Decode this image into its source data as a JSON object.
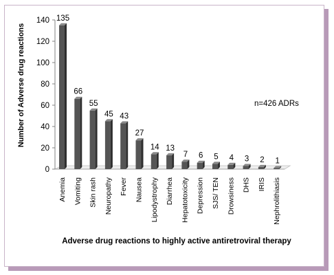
{
  "chart_data": {
    "type": "bar",
    "title": "",
    "xlabel": "Adverse drug reactions to highly active antiretroviral therapy",
    "ylabel": "Number of Adverse drug reactions",
    "annotation": "n=426 ADRs",
    "ylim": [
      0,
      140
    ],
    "yticks": [
      0,
      20,
      40,
      60,
      80,
      100,
      120,
      140
    ],
    "grid": false,
    "legend": "none",
    "bar_color": "#555555",
    "categories": [
      "Anemia",
      "Vomiting",
      "Skin rash",
      "Neuropathy",
      "Fever",
      "Nausea",
      "Lipodystrophy",
      "Diarrhea",
      "Hepatotoxicity",
      "Depression",
      "SJS/ TEN",
      "Drowsiness",
      "DHS",
      "IRIS",
      "Nephrolithiasis"
    ],
    "values": [
      135,
      66,
      55,
      45,
      43,
      27,
      14,
      13,
      7,
      6,
      5,
      4,
      3,
      2,
      1
    ]
  },
  "colors": {
    "frame_border": "#c8b4c8",
    "frame_shadow": "#b89ab8"
  }
}
